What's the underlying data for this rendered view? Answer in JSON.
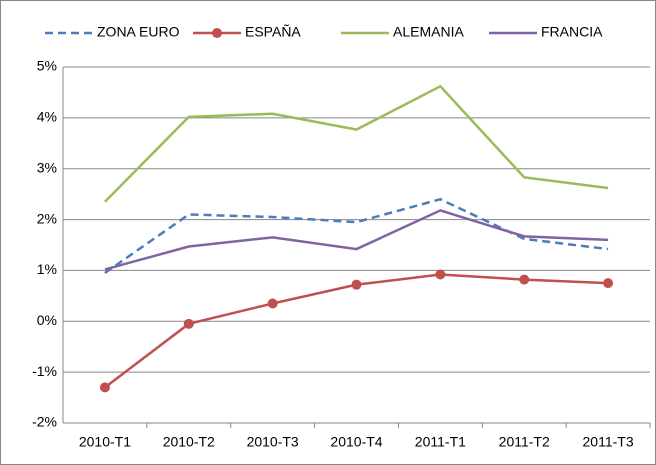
{
  "chart_data": {
    "type": "line",
    "categories": [
      "2010-T1",
      "2010-T2",
      "2010-T3",
      "2010-T4",
      "2011-T1",
      "2011-T2",
      "2011-T3"
    ],
    "series": [
      {
        "name": "ZONA EURO",
        "color": "#4a7ebb",
        "dashed": true,
        "values": [
          0.95,
          2.1,
          2.05,
          1.95,
          2.4,
          1.62,
          1.42
        ]
      },
      {
        "name": "ESPAÑA",
        "color": "#c0504d",
        "marker": "circle",
        "values": [
          -1.3,
          -0.05,
          0.35,
          0.72,
          0.92,
          0.82,
          0.75
        ]
      },
      {
        "name": "ALEMANIA",
        "color": "#9bbb59",
        "values": [
          2.35,
          4.02,
          4.08,
          3.77,
          4.62,
          2.83,
          2.62
        ]
      },
      {
        "name": "FRANCIA",
        "color": "#8064a2",
        "values": [
          1.02,
          1.47,
          1.65,
          1.42,
          2.18,
          1.67,
          1.6
        ]
      }
    ],
    "ylim": [
      -2,
      5
    ],
    "yticks": [
      {
        "value": -2,
        "label": "-2%"
      },
      {
        "value": -1,
        "label": "-1%"
      },
      {
        "value": 0,
        "label": "0%"
      },
      {
        "value": 1,
        "label": "1%"
      },
      {
        "value": 2,
        "label": "2%"
      },
      {
        "value": 3,
        "label": "3%"
      },
      {
        "value": 4,
        "label": "4%"
      },
      {
        "value": 5,
        "label": "5%"
      }
    ],
    "grid": true,
    "legend": "top"
  }
}
